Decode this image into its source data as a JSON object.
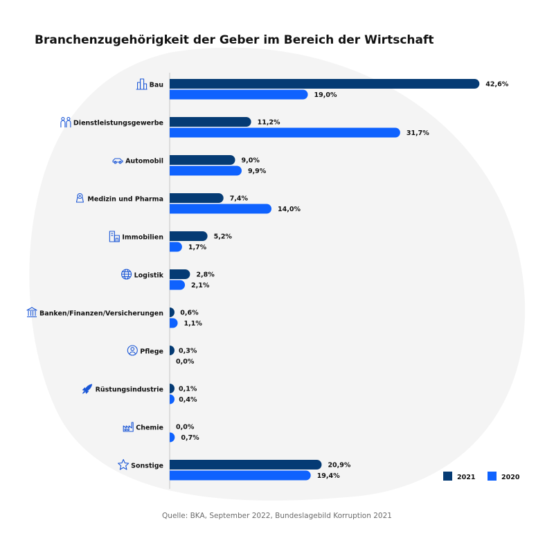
{
  "title": "Branchenzugehörigkeit der Geber im Bereich der Wirtschaft",
  "source": "Quelle: BKA, September 2022, Bundeslagebild Korruption 2021",
  "chart_data": {
    "type": "bar",
    "orientation": "horizontal",
    "categories": [
      "Bau",
      "Dienstleistungsgewerbe",
      "Automobil",
      "Medizin und Pharma",
      "Immobilien",
      "Logistik",
      "Banken/Finanzen/Versicherungen",
      "Pflege",
      "Rüstungsindustrie",
      "Chemie",
      "Sonstige"
    ],
    "category_icons": [
      "buildings-icon",
      "people-icon",
      "car-icon",
      "medicine-icon",
      "real-estate-icon",
      "globe-icon",
      "bank-icon",
      "person-icon",
      "rocket-icon",
      "factory-icon",
      "star-icon"
    ],
    "series": [
      {
        "name": "2021",
        "color": "#053b74",
        "values": [
          42.6,
          11.2,
          9.0,
          7.4,
          5.2,
          2.8,
          0.6,
          0.3,
          0.1,
          0.0,
          20.9
        ],
        "labels": [
          "42,6%",
          "11,2%",
          "9,0%",
          "7,4%",
          "5,2%",
          "2,8%",
          "0,6%",
          "0,3%",
          "0,1%",
          "0,0%",
          "20,9%"
        ]
      },
      {
        "name": "2020",
        "color": "#0f62fe",
        "values": [
          19.0,
          31.7,
          9.9,
          14.0,
          1.7,
          2.1,
          1.1,
          0.0,
          0.4,
          0.7,
          19.4
        ],
        "labels": [
          "19,0%",
          "31,7%",
          "9,9%",
          "14,0%",
          "1,7%",
          "2,1%",
          "1,1%",
          "0,0%",
          "0,4%",
          "0,7%",
          "19,4%"
        ]
      }
    ],
    "xlim": [
      0,
      42.6
    ],
    "legend_position": "bottom-right",
    "grid": false
  }
}
